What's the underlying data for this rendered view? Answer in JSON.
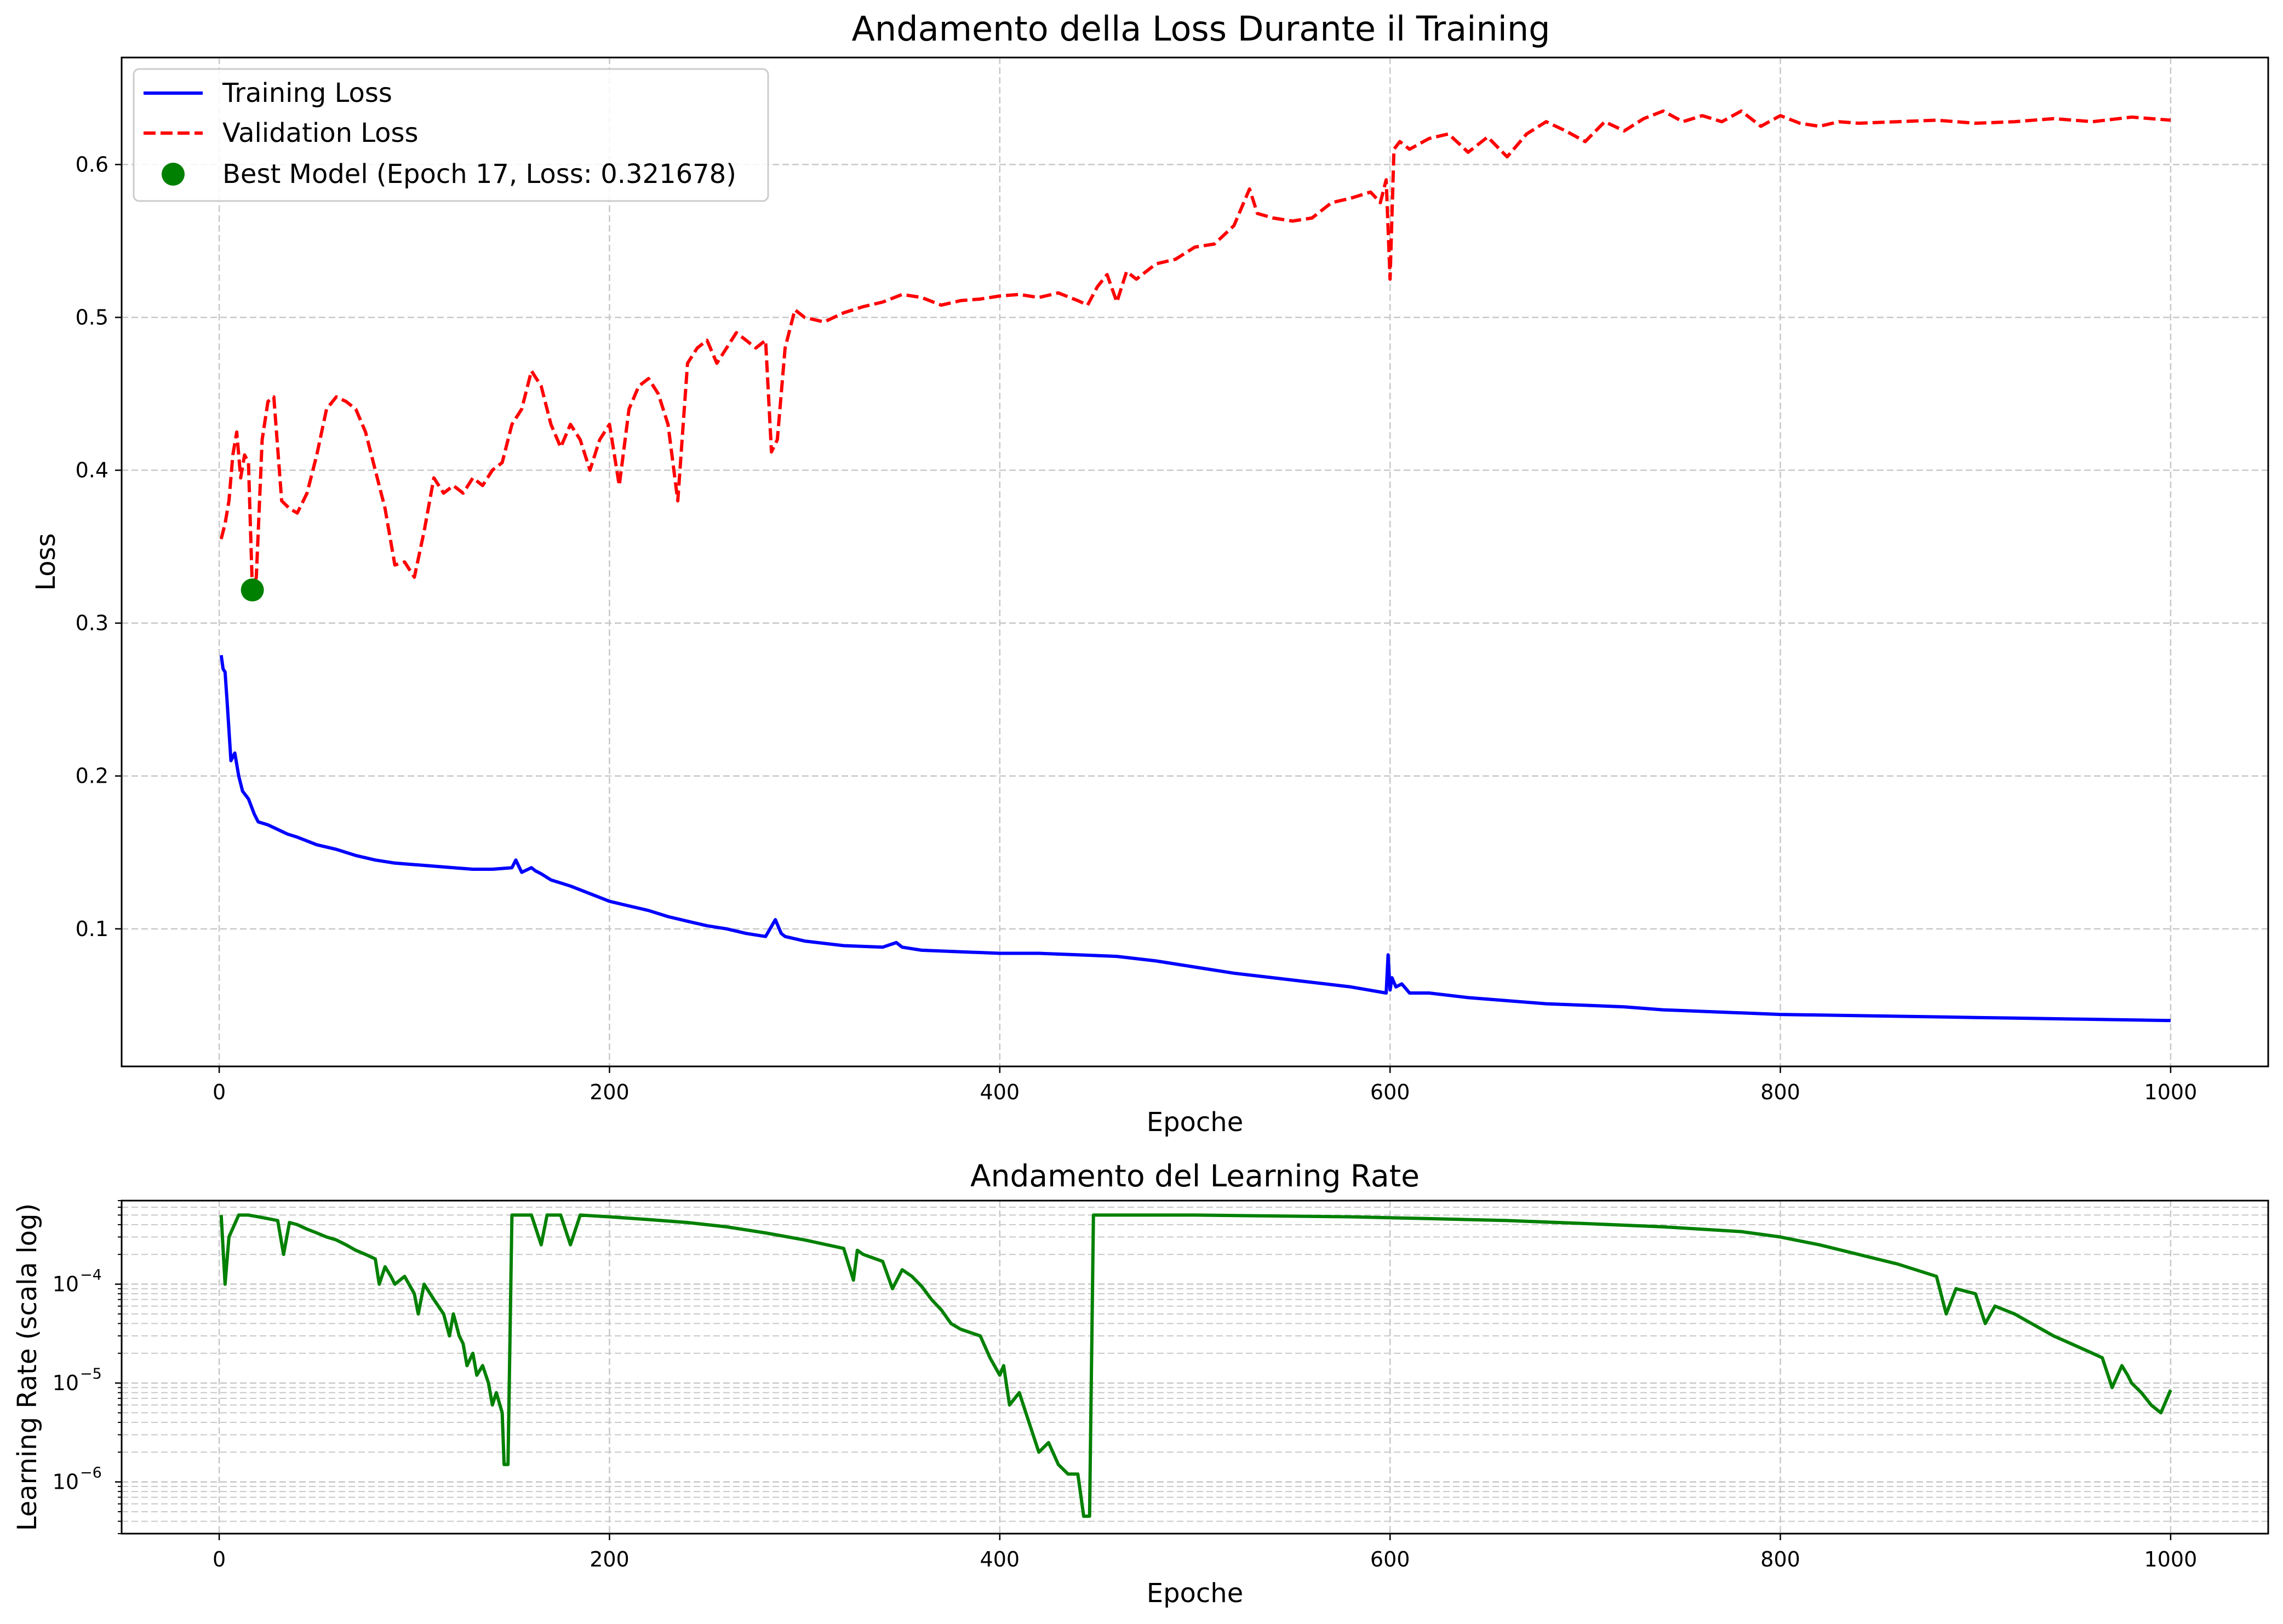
{
  "colors": {
    "training": "#0000ff",
    "validation": "#ff0000",
    "best": "#008000",
    "lr": "#008000",
    "grid": "#c8c8c8"
  },
  "chart_data": [
    {
      "type": "line",
      "title": "Andamento della Loss Durante il Training",
      "xlabel": "Epoche",
      "ylabel": "Loss",
      "xlim": [
        -50,
        1050
      ],
      "ylim": [
        0.01,
        0.67
      ],
      "xticks": [
        0,
        200,
        400,
        600,
        800,
        1000
      ],
      "xtick_labels": [
        "0",
        "200",
        "400",
        "600",
        "800",
        "1000"
      ],
      "yticks": [
        0.1,
        0.2,
        0.3,
        0.4,
        0.5,
        0.6
      ],
      "ytick_labels": [
        "0.1",
        "0.2",
        "0.3",
        "0.4",
        "0.5",
        "0.6"
      ],
      "grid": true,
      "legend_position": "top-left",
      "legend": [
        "Training Loss",
        "Validation Loss",
        "Best Model (Epoch 17, Loss: 0.321678)"
      ],
      "series": [
        {
          "name": "Training Loss",
          "style": "solid",
          "x": [
            1,
            2,
            3,
            4,
            5,
            6,
            8,
            10,
            12,
            15,
            18,
            20,
            25,
            30,
            35,
            40,
            50,
            60,
            70,
            80,
            90,
            100,
            110,
            120,
            130,
            140,
            150,
            152,
            155,
            160,
            162,
            165,
            170,
            180,
            190,
            200,
            210,
            220,
            230,
            240,
            250,
            260,
            270,
            280,
            285,
            288,
            290,
            300,
            320,
            340,
            347,
            350,
            360,
            380,
            400,
            420,
            440,
            460,
            480,
            500,
            520,
            540,
            560,
            580,
            598,
            599,
            600,
            601,
            603,
            606,
            610,
            620,
            640,
            660,
            680,
            700,
            720,
            740,
            760,
            780,
            800,
            850,
            900,
            950,
            1000
          ],
          "y": [
            0.279,
            0.27,
            0.268,
            0.25,
            0.23,
            0.21,
            0.215,
            0.2,
            0.19,
            0.185,
            0.175,
            0.17,
            0.168,
            0.165,
            0.162,
            0.16,
            0.155,
            0.152,
            0.148,
            0.145,
            0.143,
            0.142,
            0.141,
            0.14,
            0.139,
            0.139,
            0.14,
            0.145,
            0.137,
            0.14,
            0.138,
            0.136,
            0.132,
            0.128,
            0.123,
            0.118,
            0.115,
            0.112,
            0.108,
            0.105,
            0.102,
            0.1,
            0.097,
            0.095,
            0.106,
            0.097,
            0.095,
            0.092,
            0.089,
            0.088,
            0.091,
            0.088,
            0.086,
            0.085,
            0.084,
            0.084,
            0.083,
            0.082,
            0.079,
            0.075,
            0.071,
            0.068,
            0.065,
            0.062,
            0.058,
            0.083,
            0.06,
            0.068,
            0.062,
            0.064,
            0.058,
            0.058,
            0.055,
            0.053,
            0.051,
            0.05,
            0.049,
            0.047,
            0.046,
            0.045,
            0.044,
            0.043,
            0.042,
            0.041,
            0.04
          ]
        },
        {
          "name": "Validation Loss",
          "style": "dashed",
          "x": [
            1,
            3,
            5,
            7,
            9,
            11,
            13,
            15,
            17,
            19,
            22,
            25,
            28,
            32,
            36,
            40,
            45,
            50,
            55,
            60,
            65,
            70,
            75,
            80,
            85,
            90,
            95,
            100,
            105,
            110,
            115,
            120,
            125,
            130,
            135,
            140,
            145,
            150,
            155,
            160,
            165,
            170,
            175,
            180,
            185,
            190,
            195,
            200,
            205,
            210,
            215,
            220,
            225,
            230,
            235,
            240,
            245,
            250,
            255,
            260,
            265,
            270,
            275,
            280,
            283,
            286,
            290,
            295,
            300,
            310,
            320,
            330,
            340,
            350,
            360,
            370,
            380,
            390,
            400,
            410,
            420,
            430,
            440,
            445,
            450,
            455,
            460,
            465,
            470,
            480,
            490,
            500,
            510,
            520,
            525,
            528,
            532,
            540,
            550,
            560,
            570,
            580,
            590,
            595,
            598,
            600,
            602,
            605,
            610,
            620,
            630,
            640,
            650,
            660,
            670,
            680,
            690,
            700,
            710,
            720,
            730,
            740,
            750,
            760,
            770,
            780,
            790,
            800,
            810,
            820,
            830,
            840,
            860,
            880,
            900,
            920,
            940,
            960,
            980,
            1000
          ],
          "y": [
            0.355,
            0.365,
            0.38,
            0.41,
            0.425,
            0.395,
            0.41,
            0.405,
            0.322,
            0.33,
            0.42,
            0.445,
            0.448,
            0.38,
            0.375,
            0.372,
            0.385,
            0.41,
            0.44,
            0.448,
            0.445,
            0.44,
            0.425,
            0.4,
            0.375,
            0.338,
            0.34,
            0.33,
            0.36,
            0.395,
            0.385,
            0.39,
            0.385,
            0.395,
            0.39,
            0.4,
            0.405,
            0.43,
            0.44,
            0.465,
            0.455,
            0.43,
            0.415,
            0.43,
            0.42,
            0.4,
            0.42,
            0.43,
            0.39,
            0.44,
            0.455,
            0.46,
            0.45,
            0.43,
            0.38,
            0.47,
            0.48,
            0.485,
            0.47,
            0.48,
            0.49,
            0.485,
            0.48,
            0.485,
            0.412,
            0.42,
            0.48,
            0.505,
            0.5,
            0.497,
            0.503,
            0.507,
            0.51,
            0.515,
            0.513,
            0.508,
            0.511,
            0.512,
            0.514,
            0.515,
            0.513,
            0.516,
            0.511,
            0.508,
            0.52,
            0.528,
            0.51,
            0.53,
            0.525,
            0.535,
            0.538,
            0.546,
            0.548,
            0.56,
            0.575,
            0.584,
            0.568,
            0.565,
            0.563,
            0.565,
            0.575,
            0.578,
            0.582,
            0.575,
            0.59,
            0.525,
            0.61,
            0.615,
            0.61,
            0.617,
            0.62,
            0.608,
            0.618,
            0.605,
            0.62,
            0.628,
            0.622,
            0.615,
            0.628,
            0.622,
            0.63,
            0.635,
            0.628,
            0.632,
            0.628,
            0.635,
            0.625,
            0.632,
            0.627,
            0.625,
            0.628,
            0.627,
            0.628,
            0.629,
            0.627,
            0.628,
            0.63,
            0.628,
            0.631,
            0.629
          ]
        }
      ],
      "best_point": {
        "label": "Best Model (Epoch 17, Loss: 0.321678)",
        "x": 17,
        "y": 0.321678
      }
    },
    {
      "type": "line",
      "title": "Andamento del Learning Rate",
      "xlabel": "Epoche",
      "ylabel": "Learning Rate (scala log)",
      "yscale": "log",
      "xlim": [
        -50,
        1050
      ],
      "ylim": [
        3e-07,
        0.0007
      ],
      "xticks": [
        0,
        200,
        400,
        600,
        800,
        1000
      ],
      "xtick_labels": [
        "0",
        "200",
        "400",
        "600",
        "800",
        "1000"
      ],
      "yticks": [
        1e-06,
        1e-05,
        0.0001
      ],
      "ytick_labels": [
        {
          "base": "10",
          "exp": "−6"
        },
        {
          "base": "10",
          "exp": "−5"
        },
        {
          "base": "10",
          "exp": "−4"
        }
      ],
      "grid": true,
      "series": [
        {
          "name": "Learning Rate",
          "style": "solid",
          "x": [
            1,
            3,
            5,
            10,
            15,
            20,
            25,
            30,
            33,
            36,
            40,
            45,
            50,
            55,
            60,
            65,
            70,
            75,
            80,
            82,
            85,
            88,
            90,
            95,
            100,
            102,
            105,
            110,
            115,
            118,
            120,
            123,
            125,
            127,
            130,
            132,
            135,
            138,
            140,
            142,
            145,
            146,
            148,
            150,
            160,
            165,
            168,
            175,
            180,
            185,
            200,
            220,
            240,
            260,
            280,
            300,
            320,
            325,
            327,
            330,
            340,
            345,
            350,
            355,
            360,
            365,
            370,
            375,
            380,
            390,
            395,
            400,
            402,
            405,
            410,
            415,
            420,
            425,
            430,
            435,
            440,
            443,
            446,
            448,
            450,
            460,
            480,
            500,
            540,
            580,
            620,
            660,
            700,
            740,
            780,
            800,
            820,
            840,
            860,
            880,
            885,
            890,
            900,
            905,
            910,
            920,
            940,
            960,
            965,
            970,
            975,
            978,
            980,
            985,
            990,
            995,
            1000
          ],
          "y": [
            0.0005,
            0.0001,
            0.0003,
            0.0005,
            0.0005,
            0.00048,
            0.00046,
            0.00044,
            0.0002,
            0.00042,
            0.0004,
            0.00036,
            0.00033,
            0.0003,
            0.00028,
            0.00025,
            0.00022,
            0.0002,
            0.00018,
            0.0001,
            0.00015,
            0.00012,
            0.0001,
            0.00012,
            8e-05,
            5e-05,
            0.0001,
            7e-05,
            5e-05,
            3e-05,
            5e-05,
            3e-05,
            2.5e-05,
            1.5e-05,
            2e-05,
            1.2e-05,
            1.5e-05,
            1e-05,
            6e-06,
            8e-06,
            5e-06,
            1.5e-06,
            1.5e-06,
            0.0005,
            0.0005,
            0.00025,
            0.0005,
            0.0005,
            0.00025,
            0.0005,
            0.00048,
            0.00045,
            0.00042,
            0.00038,
            0.00033,
            0.00028,
            0.00023,
            0.00011,
            0.00022,
            0.0002,
            0.00017,
            9e-05,
            0.00014,
            0.00012,
            9.5e-05,
            7e-05,
            5.5e-05,
            4e-05,
            3.5e-05,
            3e-05,
            1.8e-05,
            1.2e-05,
            1.5e-05,
            6e-06,
            8e-06,
            4e-06,
            2e-06,
            2.5e-06,
            1.5e-06,
            1.2e-06,
            1.2e-06,
            4.5e-07,
            4.5e-07,
            0.0005,
            0.0005,
            0.0005,
            0.0005,
            0.0005,
            0.00049,
            0.00048,
            0.00046,
            0.00044,
            0.00041,
            0.00038,
            0.00034,
            0.0003,
            0.00025,
            0.0002,
            0.00016,
            0.00012,
            5e-05,
            9e-05,
            8e-05,
            4e-05,
            6e-05,
            5e-05,
            3e-05,
            2e-05,
            1.8e-05,
            9e-06,
            1.5e-05,
            1.2e-05,
            1e-05,
            8e-06,
            6e-06,
            5e-06,
            8.5e-06
          ]
        }
      ]
    }
  ]
}
